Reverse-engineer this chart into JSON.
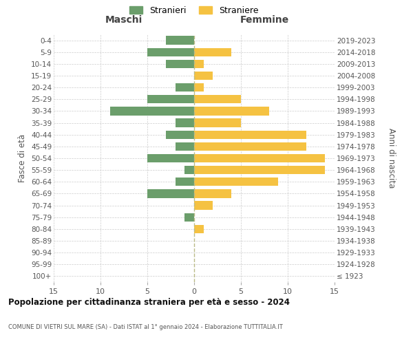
{
  "age_groups": [
    "100+",
    "95-99",
    "90-94",
    "85-89",
    "80-84",
    "75-79",
    "70-74",
    "65-69",
    "60-64",
    "55-59",
    "50-54",
    "45-49",
    "40-44",
    "35-39",
    "30-34",
    "25-29",
    "20-24",
    "15-19",
    "10-14",
    "5-9",
    "0-4"
  ],
  "birth_years": [
    "≤ 1923",
    "1924-1928",
    "1929-1933",
    "1934-1938",
    "1939-1943",
    "1944-1948",
    "1949-1953",
    "1954-1958",
    "1959-1963",
    "1964-1968",
    "1969-1973",
    "1974-1978",
    "1979-1983",
    "1984-1988",
    "1989-1993",
    "1994-1998",
    "1999-2003",
    "2004-2008",
    "2009-2013",
    "2014-2018",
    "2019-2023"
  ],
  "maschi": [
    0,
    0,
    0,
    0,
    0,
    1,
    0,
    5,
    2,
    1,
    5,
    2,
    3,
    2,
    9,
    5,
    2,
    0,
    3,
    5,
    3
  ],
  "femmine": [
    0,
    0,
    0,
    0,
    1,
    0,
    2,
    4,
    9,
    14,
    14,
    12,
    12,
    5,
    8,
    5,
    1,
    2,
    1,
    4,
    0
  ],
  "male_color": "#6b9e6b",
  "female_color": "#f5c242",
  "background_color": "#ffffff",
  "grid_color": "#cccccc",
  "center_line_color": "#aaaaaa",
  "xlim": 15,
  "title": "Popolazione per cittadinanza straniera per età e sesso - 2024",
  "subtitle": "COMUNE DI VIETRI SUL MARE (SA) - Dati ISTAT al 1° gennaio 2024 - Elaborazione TUTTITALIA.IT",
  "xlabel_left": "Maschi",
  "xlabel_right": "Femmine",
  "ylabel_left": "Fasce di età",
  "ylabel_right": "Anni di nascita",
  "legend_male": "Stranieri",
  "legend_female": "Straniere"
}
